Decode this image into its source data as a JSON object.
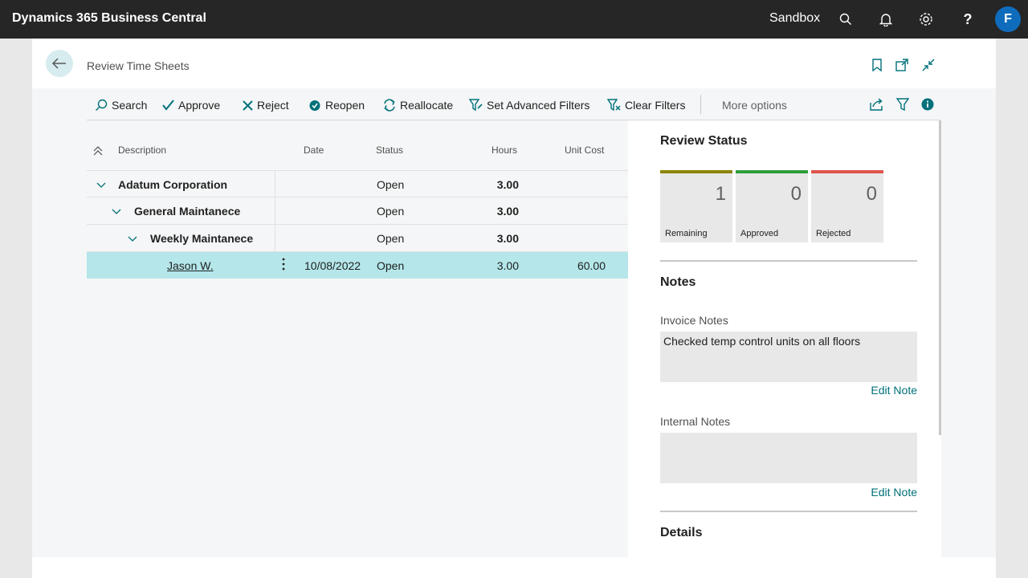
{
  "topbar": {
    "app_title": "Dynamics 365 Business Central",
    "environment": "Sandbox",
    "avatar_initial": "F",
    "icons": [
      "search-icon",
      "bell-icon",
      "gear-icon",
      "help-icon"
    ]
  },
  "page": {
    "title": "Review Time Sheets"
  },
  "actions": {
    "search": "Search",
    "approve": "Approve",
    "reject": "Reject",
    "reopen": "Reopen",
    "reallocate": "Reallocate",
    "set_advanced_filters": "Set Advanced Filters",
    "clear_filters": "Clear Filters",
    "more_options": "More options"
  },
  "grid": {
    "columns": {
      "description": "Description",
      "date": "Date",
      "status": "Status",
      "hours": "Hours",
      "unit_cost": "Unit Cost"
    },
    "rows": [
      {
        "description": "Adatum Corporation",
        "date": "",
        "status": "Open",
        "hours": "3.00",
        "unit_cost": ""
      },
      {
        "description": "General Maintanece",
        "date": "",
        "status": "Open",
        "hours": "3.00",
        "unit_cost": ""
      },
      {
        "description": "Weekly Maintanece",
        "date": "",
        "status": "Open",
        "hours": "3.00",
        "unit_cost": ""
      },
      {
        "description": "Jason W.",
        "date": "10/08/2022",
        "status": "Open",
        "hours": "3.00",
        "unit_cost": "60.00"
      }
    ]
  },
  "factbox": {
    "review_status_title": "Review Status",
    "tiles": [
      {
        "value": "1",
        "label": "Remaining",
        "color": "#8c8500"
      },
      {
        "value": "0",
        "label": "Approved",
        "color": "#2e9e3a"
      },
      {
        "value": "0",
        "label": "Rejected",
        "color": "#e0554a"
      }
    ],
    "notes_title": "Notes",
    "invoice_notes_label": "Invoice Notes",
    "invoice_notes_value": "Checked temp control units on all floors",
    "internal_notes_label": "Internal Notes",
    "internal_notes_value": "",
    "edit_note": "Edit Note",
    "details_title": "Details"
  },
  "colors": {
    "topbar": "#262626",
    "accent": "#00707a",
    "selected_row": "#b4e6ea"
  }
}
